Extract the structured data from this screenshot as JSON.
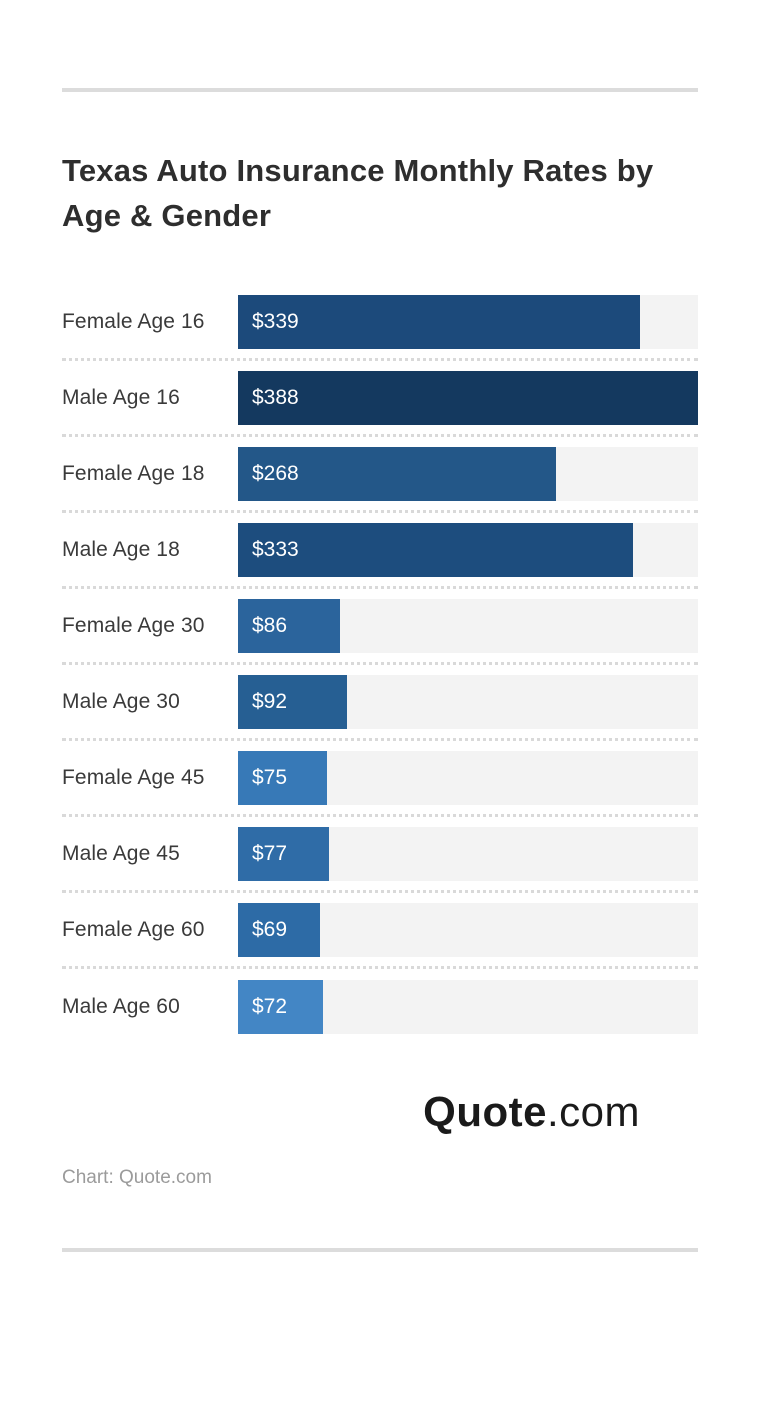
{
  "header": {
    "title_line1": "Texas Auto Insurance Monthly Rates by",
    "title_line2": "Age & Gender"
  },
  "chart_data": {
    "type": "bar",
    "orientation": "horizontal",
    "title": "Texas Auto Insurance Monthly Rates by Age & Gender",
    "categories": [
      "Female Age 16",
      "Male Age 16",
      "Female Age 18",
      "Male Age 18",
      "Female Age 30",
      "Male Age 30",
      "Female Age 45",
      "Male Age 45",
      "Female Age 60",
      "Male Age 60"
    ],
    "values": [
      339,
      388,
      268,
      333,
      86,
      92,
      75,
      77,
      69,
      72
    ],
    "value_labels": [
      "$339",
      "$388",
      "$268",
      "$333",
      "$86",
      "$92",
      "$75",
      "$77",
      "$69",
      "$72"
    ],
    "xlim": [
      0,
      388
    ],
    "bar_colors": [
      "#1c4a7b",
      "#14395f",
      "#235788",
      "#1d4d7e",
      "#2b649c",
      "#265f93",
      "#3779b7",
      "#2f6ca7",
      "#2d6ba6",
      "#4386c5"
    ],
    "track_color": "#f3f3f3",
    "value_label_position": "inside-left",
    "grid": false,
    "legend": false
  },
  "footer": {
    "logo_bold": "Quote",
    "logo_suffix": ".com",
    "attribution": "Chart: Quote.com"
  },
  "colors": {
    "divider": "#dcdcdc",
    "row_separator": "#d9d9d9",
    "title_text": "#2e2e2e",
    "label_text": "#3a3a3a",
    "value_text": "#ffffff",
    "attribution_text": "#9b9b9b",
    "logo_text": "#1a1a1a",
    "background": "#ffffff"
  }
}
